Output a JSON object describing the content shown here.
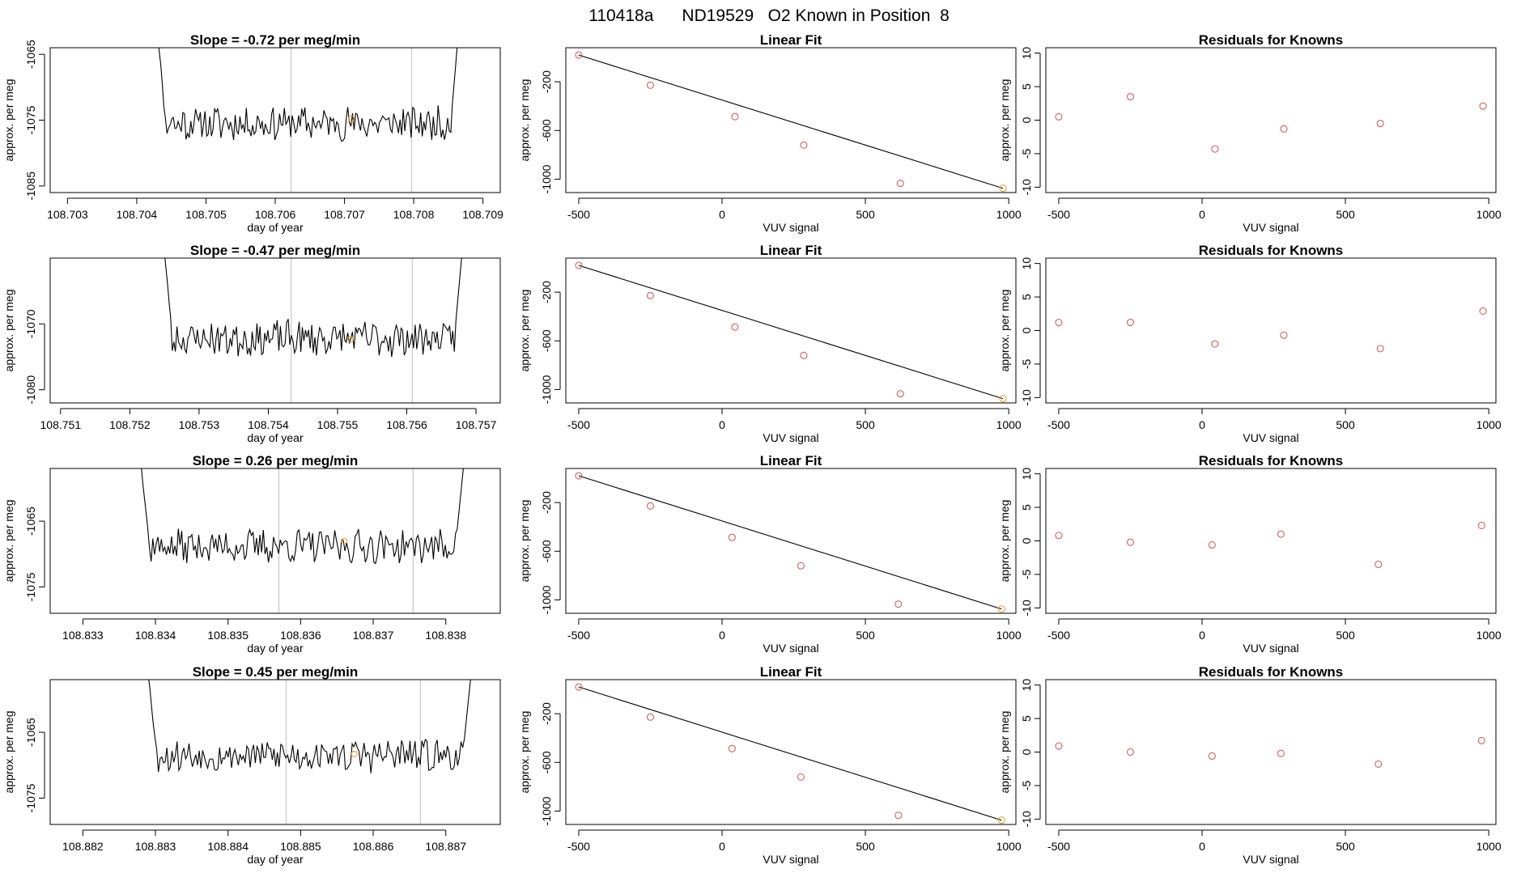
{
  "title": "110418a      ND19529   O2 Known in Position  8",
  "colors": {
    "trace": "#000000",
    "marker": "#e8a33a",
    "vline": "#c8c8c8",
    "residual": "#d0605e",
    "fit": "#000000"
  },
  "chart_data": [
    {
      "type": "line",
      "title": "Slope =  -0.72  per meg/min",
      "xlabel": "day of year",
      "ylabel": "approx. per meg",
      "xlim": [
        108.70275,
        108.70925
      ],
      "ylim": [
        -1086,
        -1064
      ],
      "xticks": [
        "108.703",
        "108.704",
        "108.705",
        "108.706",
        "108.707",
        "108.708",
        "108.709"
      ],
      "xtick_values": [
        108.703,
        108.704,
        108.705,
        108.706,
        108.707,
        108.708,
        108.709
      ],
      "yticks": [
        "-1065",
        "-1075",
        "-1085"
      ],
      "ytick_values": [
        -1065,
        -1075,
        -1085
      ],
      "vlines": [
        108.70623,
        108.70797
      ],
      "marker": [
        108.7071,
        -1074.8
      ],
      "trace": {
        "x_start": 108.7043,
        "x_end": 108.70865,
        "base": -1075.5,
        "amplitude": 2.3,
        "seed": 11,
        "start_high": -1061,
        "end_high": -1061
      }
    },
    {
      "type": "scatter",
      "title": "Linear Fit",
      "xlabel": "VUV signal",
      "ylabel": "approx. per meg",
      "xlim": [
        -545,
        1025
      ],
      "ylim": [
        -1110,
        80
      ],
      "xticks": [
        "-500",
        "0",
        "500",
        "1000"
      ],
      "xtick_values": [
        -500,
        0,
        500,
        1000
      ],
      "yticks": [
        "-200",
        "-600",
        "-1000"
      ],
      "ytick_values": [
        -200,
        -600,
        -1000
      ],
      "points": {
        "x": [
          -500,
          -250,
          45,
          285,
          622,
          980
        ],
        "y": [
          20,
          -228,
          -486,
          -720,
          -1035,
          -1075
        ]
      },
      "fit_line": [
        [
          -500,
          20
        ],
        [
          980,
          -1075
        ]
      ]
    },
    {
      "type": "scatter",
      "title": "Residuals for Knowns",
      "xlabel": "VUV signal",
      "ylabel": "approx. per meg",
      "xlim": [
        -545,
        1025
      ],
      "ylim": [
        -10.8,
        10.8
      ],
      "xticks": [
        "-500",
        "0",
        "500",
        "1000"
      ],
      "xtick_values": [
        -500,
        0,
        500,
        1000
      ],
      "yticks": [
        "10",
        "5",
        "0",
        "-5",
        "-10"
      ],
      "ytick_values": [
        10,
        5,
        0,
        -5,
        -10
      ],
      "points": {
        "x": [
          -500,
          -250,
          45,
          285,
          622,
          980
        ],
        "y": [
          0.5,
          3.5,
          -4.3,
          -1.3,
          -0.5,
          2.1
        ]
      }
    },
    {
      "type": "line",
      "title": "Slope =  -0.47  per meg/min",
      "xlabel": "day of year",
      "ylabel": "approx. per meg",
      "xlim": [
        108.75085,
        108.75735
      ],
      "ylim": [
        -1082,
        -1060
      ],
      "xticks": [
        "108.751",
        "108.752",
        "108.753",
        "108.754",
        "108.755",
        "108.756",
        "108.757"
      ],
      "xtick_values": [
        108.751,
        108.752,
        108.753,
        108.754,
        108.755,
        108.756,
        108.757
      ],
      "yticks": [
        "-1070",
        "-1080"
      ],
      "ytick_values": [
        -1070,
        -1080
      ],
      "vlines": [
        108.75433,
        108.75608
      ],
      "marker": [
        108.75519,
        -1072.3
      ],
      "trace": {
        "x_start": 108.7525,
        "x_end": 108.7568,
        "base": -1072.2,
        "amplitude": 2.4,
        "seed": 23,
        "start_high": -1059,
        "end_high": -1059
      }
    },
    {
      "type": "scatter",
      "title": "Linear Fit",
      "xlabel": "VUV signal",
      "ylabel": "approx. per meg",
      "xlim": [
        -545,
        1025
      ],
      "ylim": [
        -1110,
        80
      ],
      "xticks": [
        "-500",
        "0",
        "500",
        "1000"
      ],
      "xtick_values": [
        -500,
        0,
        500,
        1000
      ],
      "yticks": [
        "-200",
        "-600",
        "-1000"
      ],
      "ytick_values": [
        -200,
        -600,
        -1000
      ],
      "points": {
        "x": [
          -500,
          -250,
          45,
          285,
          622,
          980
        ],
        "y": [
          20,
          -228,
          -486,
          -720,
          -1035,
          -1075
        ]
      },
      "fit_line": [
        [
          -500,
          20
        ],
        [
          980,
          -1075
        ]
      ]
    },
    {
      "type": "scatter",
      "title": "Residuals for Knowns",
      "xlabel": "VUV signal",
      "ylabel": "approx. per meg",
      "xlim": [
        -545,
        1025
      ],
      "ylim": [
        -10.8,
        10.8
      ],
      "xticks": [
        "-500",
        "0",
        "500",
        "1000"
      ],
      "xtick_values": [
        -500,
        0,
        500,
        1000
      ],
      "yticks": [
        "10",
        "5",
        "0",
        "-5",
        "-10"
      ],
      "ytick_values": [
        10,
        5,
        0,
        -5,
        -10
      ],
      "points": {
        "x": [
          -500,
          -250,
          45,
          285,
          622,
          980
        ],
        "y": [
          1.2,
          1.2,
          -2.0,
          -0.7,
          -2.7,
          2.9
        ]
      }
    },
    {
      "type": "line",
      "title": "Slope =  0.26  per meg/min",
      "xlabel": "day of year",
      "ylabel": "approx. per meg",
      "xlim": [
        108.83255,
        108.83875
      ],
      "ylim": [
        -1079,
        -1057
      ],
      "xticks": [
        "108.833",
        "108.834",
        "108.835",
        "108.836",
        "108.837",
        "108.838"
      ],
      "xtick_values": [
        108.833,
        108.834,
        108.835,
        108.836,
        108.837,
        108.838
      ],
      "yticks": [
        "-1065",
        "-1075"
      ],
      "ytick_values": [
        -1065,
        -1075
      ],
      "vlines": [
        108.8357,
        108.83755
      ],
      "marker": [
        108.8366,
        -1068.0
      ],
      "trace": {
        "x_start": 108.8338,
        "x_end": 108.83825,
        "base": -1068.8,
        "amplitude": 2.2,
        "seed": 37,
        "start_high": -1056,
        "end_high": -1056
      }
    },
    {
      "type": "scatter",
      "title": "Linear Fit",
      "xlabel": "VUV signal",
      "ylabel": "approx. per meg",
      "xlim": [
        -545,
        1025
      ],
      "ylim": [
        -1110,
        80
      ],
      "xticks": [
        "-500",
        "0",
        "500",
        "1000"
      ],
      "xtick_values": [
        -500,
        0,
        500,
        1000
      ],
      "yticks": [
        "-200",
        "-600",
        "-1000"
      ],
      "ytick_values": [
        -200,
        -600,
        -1000
      ],
      "points": {
        "x": [
          -500,
          -250,
          35,
          275,
          615,
          975
        ],
        "y": [
          20,
          -228,
          -486,
          -720,
          -1035,
          -1075
        ]
      },
      "fit_line": [
        [
          -500,
          20
        ],
        [
          975,
          -1075
        ]
      ]
    },
    {
      "type": "scatter",
      "title": "Residuals for Knowns",
      "xlabel": "VUV signal",
      "ylabel": "approx. per meg",
      "xlim": [
        -545,
        1025
      ],
      "ylim": [
        -10.8,
        10.8
      ],
      "xticks": [
        "-500",
        "0",
        "500",
        "1000"
      ],
      "xtick_values": [
        -500,
        0,
        500,
        1000
      ],
      "yticks": [
        "10",
        "5",
        "0",
        "-5",
        "-10"
      ],
      "ytick_values": [
        10,
        5,
        0,
        -5,
        -10
      ],
      "points": {
        "x": [
          -500,
          -250,
          35,
          275,
          615,
          975
        ],
        "y": [
          0.8,
          -0.2,
          -0.6,
          1.0,
          -3.5,
          2.3
        ]
      }
    },
    {
      "type": "line",
      "title": "Slope =  0.45  per meg/min",
      "xlabel": "day of year",
      "ylabel": "approx. per meg",
      "xlim": [
        108.88155,
        108.88775
      ],
      "ylim": [
        -1079,
        -1057
      ],
      "xticks": [
        "108.882",
        "108.883",
        "108.884",
        "108.885",
        "108.886",
        "108.887"
      ],
      "xtick_values": [
        108.882,
        108.883,
        108.884,
        108.885,
        108.886,
        108.887
      ],
      "yticks": [
        "-1065",
        "-1075"
      ],
      "ytick_values": [
        -1065,
        -1075
      ],
      "vlines": [
        108.8848,
        108.88665
      ],
      "marker": [
        108.88574,
        -1068.3
      ],
      "trace": {
        "x_start": 108.8829,
        "x_end": 108.88735,
        "base": -1068.5,
        "amplitude": 2.2,
        "seed": 53,
        "start_high": -1056,
        "end_high": -1056
      }
    },
    {
      "type": "scatter",
      "title": "Linear Fit",
      "xlabel": "VUV signal",
      "ylabel": "approx. per meg",
      "xlim": [
        -545,
        1025
      ],
      "ylim": [
        -1110,
        80
      ],
      "xticks": [
        "-500",
        "0",
        "500",
        "1000"
      ],
      "xtick_values": [
        -500,
        0,
        500,
        1000
      ],
      "yticks": [
        "-200",
        "-600",
        "-1000"
      ],
      "ytick_values": [
        -200,
        -600,
        -1000
      ],
      "points": {
        "x": [
          -500,
          -250,
          35,
          275,
          615,
          975
        ],
        "y": [
          20,
          -228,
          -486,
          -720,
          -1035,
          -1075
        ]
      },
      "fit_line": [
        [
          -500,
          20
        ],
        [
          975,
          -1075
        ]
      ]
    },
    {
      "type": "scatter",
      "title": "Residuals for Knowns",
      "xlabel": "VUV signal",
      "ylabel": "approx. per meg",
      "xlim": [
        -545,
        1025
      ],
      "ylim": [
        -10.8,
        10.8
      ],
      "xticks": [
        "-500",
        "0",
        "500",
        "1000"
      ],
      "xtick_values": [
        -500,
        0,
        500,
        1000
      ],
      "yticks": [
        "10",
        "5",
        "0",
        "-5",
        "-10"
      ],
      "ytick_values": [
        10,
        5,
        0,
        -5,
        -10
      ],
      "points": {
        "x": [
          -500,
          -250,
          35,
          275,
          615,
          975
        ],
        "y": [
          0.9,
          0.0,
          -0.6,
          -0.2,
          -1.8,
          1.7
        ]
      }
    }
  ]
}
